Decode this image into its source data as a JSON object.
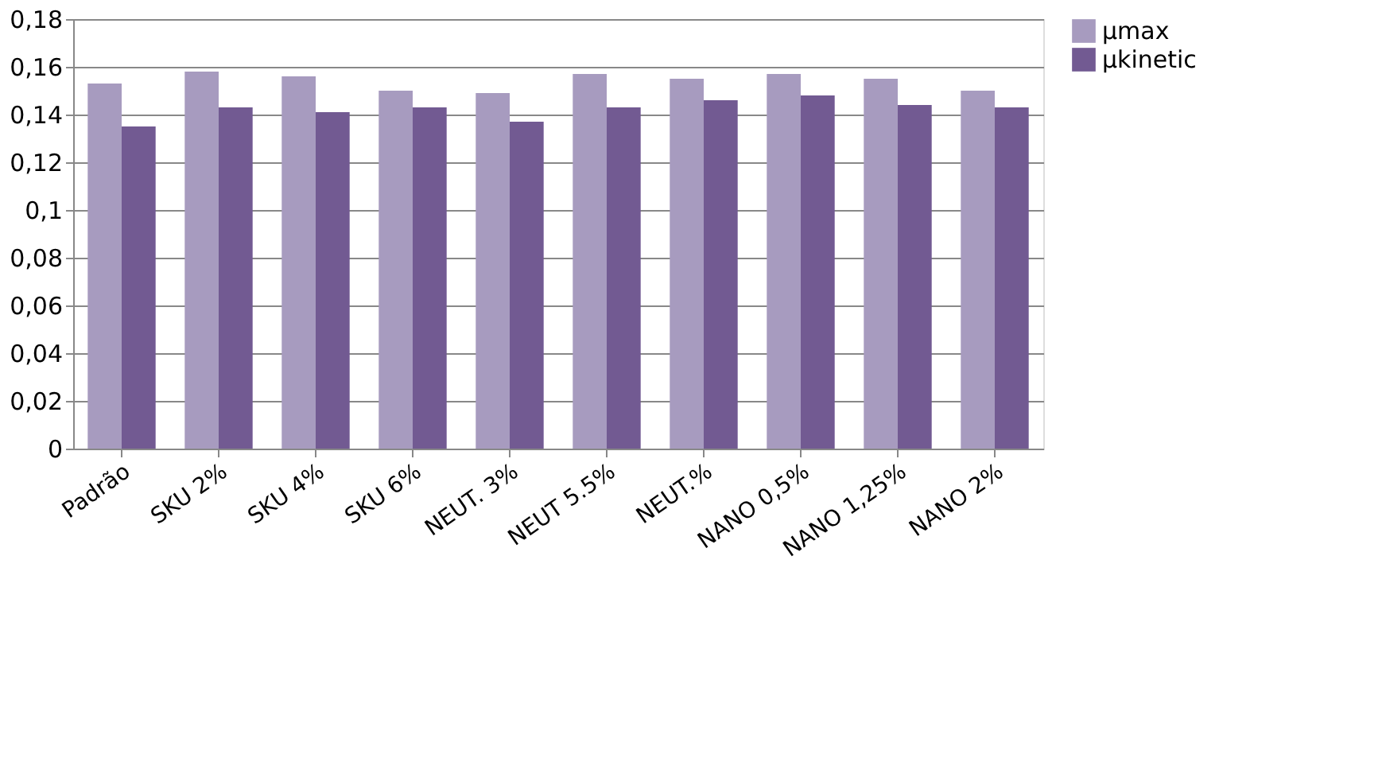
{
  "chart_data": {
    "type": "bar",
    "categories": [
      "Padrão",
      "SKU 2%",
      "SKU 4%",
      "SKU 6%",
      "NEUT. 3%",
      "NEUT 5.5%",
      "NEUT.%",
      "NANO 0,5%",
      "NANO 1,25%",
      "NANO 2%"
    ],
    "series": [
      {
        "name": "µmax",
        "color": "#a79bbf",
        "values": [
          0.153,
          0.158,
          0.156,
          0.15,
          0.149,
          0.157,
          0.155,
          0.157,
          0.155,
          0.15
        ]
      },
      {
        "name": "µkinetic",
        "color": "#725a92",
        "values": [
          0.135,
          0.143,
          0.141,
          0.143,
          0.137,
          0.143,
          0.146,
          0.148,
          0.144,
          0.143
        ]
      }
    ],
    "ylim": [
      0,
      0.18
    ],
    "yticks": [
      {
        "value": 0,
        "label": "0"
      },
      {
        "value": 0.02,
        "label": "0,02"
      },
      {
        "value": 0.04,
        "label": "0,04"
      },
      {
        "value": 0.06,
        "label": "0,06"
      },
      {
        "value": 0.08,
        "label": "0,08"
      },
      {
        "value": 0.1,
        "label": "0,1"
      },
      {
        "value": 0.12,
        "label": "0,12"
      },
      {
        "value": 0.14,
        "label": "0,14"
      },
      {
        "value": 0.16,
        "label": "0,16"
      },
      {
        "value": 0.18,
        "label": "0,18"
      }
    ],
    "grid": "y",
    "legend": "right"
  }
}
